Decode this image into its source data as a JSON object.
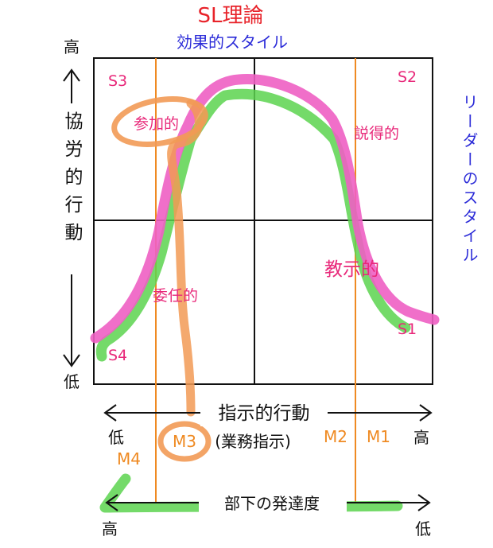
{
  "title": "SL理論",
  "subtitle": "効果的スタイル",
  "y_axis": {
    "top": "高",
    "label": "協労的行動",
    "bottom": "低"
  },
  "right_label": "リーダーのスタイル",
  "quadrants": {
    "top_left": "S3",
    "top_right": "S2",
    "bottom_left": "S4",
    "bottom_right": "S1"
  },
  "styles": {
    "participative": "参加的",
    "persuasive": "説得的",
    "instructive": "教示的",
    "delegative": "委任的"
  },
  "x_axis": {
    "left": "低",
    "label": "指示的行動",
    "right": "高"
  },
  "maturity_levels": [
    "M4",
    "M3",
    "M2",
    "M1"
  ],
  "task_note": "(業務指示)",
  "bottom_axis": {
    "label": "部下の発達度",
    "left": "高",
    "right": "低"
  },
  "colors": {
    "title": "#e8232a",
    "blue": "#2b2bd8",
    "magenta": "#e8297a",
    "green": "#5cd44f",
    "pink_curve": "#ee5fc3",
    "orange": "#f29a55",
    "orange_line": "#ef8a22",
    "ink": "#111111"
  }
}
